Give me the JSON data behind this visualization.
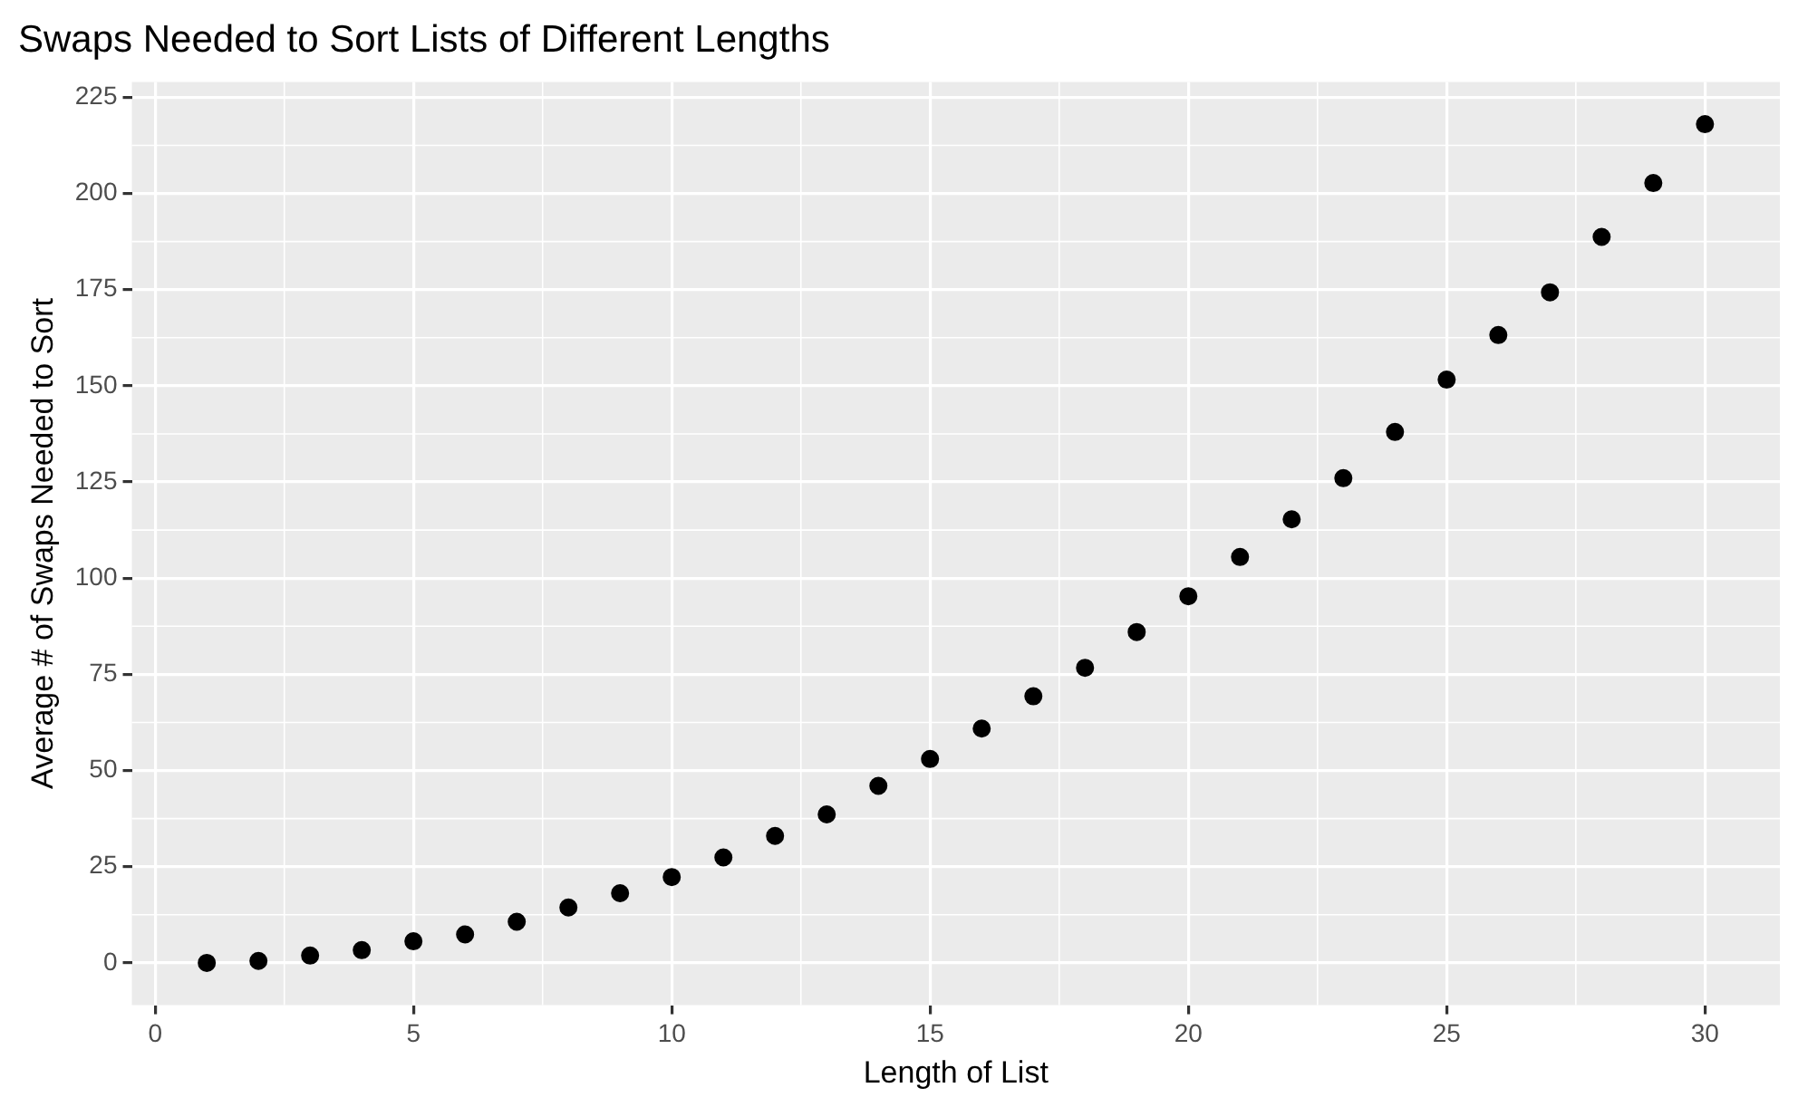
{
  "chart_data": {
    "type": "scatter",
    "title": "Swaps Needed to Sort Lists of Different Lengths",
    "xlabel": "Length of List",
    "ylabel": "Average # of Swaps Needed to Sort",
    "x": [
      1,
      2,
      3,
      4,
      5,
      6,
      7,
      8,
      9,
      10,
      11,
      12,
      13,
      14,
      15,
      16,
      17,
      18,
      19,
      20,
      21,
      22,
      23,
      24,
      25,
      26,
      27,
      28,
      29,
      30
    ],
    "series": [
      {
        "color": "#000000",
        "values": [
          0,
          0.5,
          1.9,
          3.3,
          5.6,
          7.4,
          10.7,
          14.4,
          18.1,
          22.3,
          27.4,
          33,
          38.6,
          46,
          53,
          60.9,
          69.3,
          76.7,
          86,
          95.3,
          105.5,
          115.3,
          126,
          138,
          151.6,
          163.2,
          174.3,
          188.7,
          202.7,
          218
        ]
      }
    ],
    "xlim": [
      -0.45,
      31.45
    ],
    "ylim": [
      -11,
      229
    ],
    "xticks": [
      0,
      5,
      10,
      15,
      20,
      25,
      30
    ],
    "yticks": [
      0,
      25,
      50,
      75,
      100,
      125,
      150,
      175,
      200,
      225
    ],
    "grid": true,
    "legend": false,
    "marker": "circle"
  }
}
